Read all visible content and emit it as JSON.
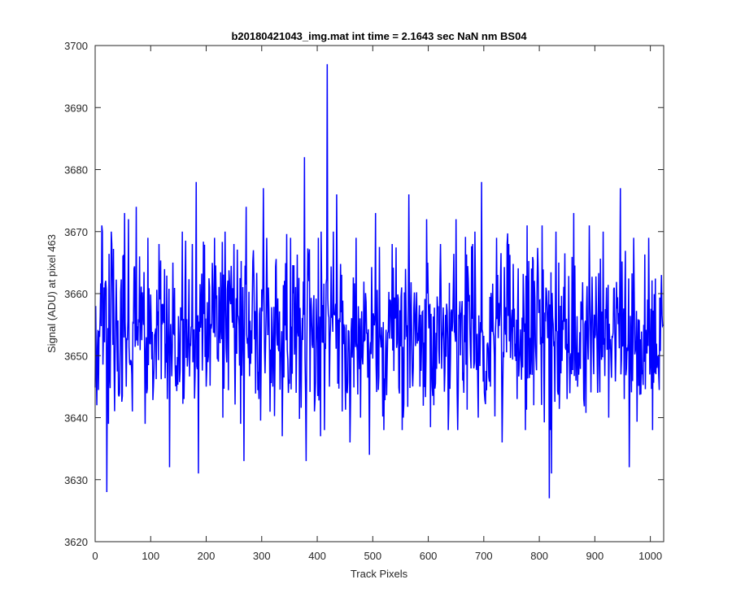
{
  "chart_data": {
    "type": "line",
    "title": "b20180421043_img.mat int time = 2.1643 sec  NaN nm BS04",
    "xlabel": "Track Pixels",
    "ylabel": "Signal (ADU) at pixel 463",
    "xlim": [
      0,
      1024
    ],
    "ylim": [
      3620,
      3700
    ],
    "xticks": [
      0,
      100,
      200,
      300,
      400,
      500,
      600,
      700,
      800,
      900,
      1000
    ],
    "yticks": [
      3620,
      3630,
      3640,
      3650,
      3660,
      3670,
      3680,
      3690,
      3700
    ],
    "grid": false,
    "series": [
      {
        "color": "#0000ff",
        "baseline": 3654,
        "spread": 6.5,
        "count": 1024,
        "points": [
          [
            1,
            3658
          ],
          [
            3,
            3642
          ],
          [
            8,
            3653
          ],
          [
            12,
            3671
          ],
          [
            16,
            3661
          ],
          [
            21,
            3628
          ],
          [
            24,
            3639
          ],
          [
            30,
            3668
          ],
          [
            36,
            3650
          ],
          [
            44,
            3644
          ],
          [
            50,
            3666
          ],
          [
            53,
            3673
          ],
          [
            56,
            3645
          ],
          [
            60,
            3672
          ],
          [
            67,
            3641
          ],
          [
            74,
            3674
          ],
          [
            80,
            3666
          ],
          [
            90,
            3639
          ],
          [
            95,
            3669
          ],
          [
            105,
            3645
          ],
          [
            115,
            3668
          ],
          [
            130,
            3643
          ],
          [
            134,
            3632
          ],
          [
            140,
            3665
          ],
          [
            160,
            3643
          ],
          [
            175,
            3668
          ],
          [
            182,
            3678
          ],
          [
            186,
            3631
          ],
          [
            200,
            3645
          ],
          [
            215,
            3669
          ],
          [
            230,
            3640
          ],
          [
            250,
            3668
          ],
          [
            262,
            3639
          ],
          [
            268,
            3633
          ],
          [
            272,
            3674
          ],
          [
            285,
            3667
          ],
          [
            295,
            3643
          ],
          [
            303,
            3677
          ],
          [
            320,
            3645
          ],
          [
            337,
            3637
          ],
          [
            352,
            3669
          ],
          [
            362,
            3644
          ],
          [
            377,
            3682
          ],
          [
            380,
            3633
          ],
          [
            385,
            3662
          ],
          [
            395,
            3641
          ],
          [
            402,
            3669
          ],
          [
            406,
            3637
          ],
          [
            418,
            3697
          ],
          [
            422,
            3645
          ],
          [
            435,
            3676
          ],
          [
            445,
            3641
          ],
          [
            459,
            3636
          ],
          [
            470,
            3669
          ],
          [
            478,
            3640
          ],
          [
            494,
            3634
          ],
          [
            505,
            3673
          ],
          [
            520,
            3638
          ],
          [
            535,
            3668
          ],
          [
            555,
            3640
          ],
          [
            565,
            3676
          ],
          [
            585,
            3645
          ],
          [
            597,
            3672
          ],
          [
            610,
            3642
          ],
          [
            622,
            3668
          ],
          [
            636,
            3638
          ],
          [
            650,
            3672
          ],
          [
            664,
            3644
          ],
          [
            680,
            3668
          ],
          [
            690,
            3640
          ],
          [
            696,
            3678
          ],
          [
            712,
            3645
          ],
          [
            723,
            3669
          ],
          [
            733,
            3636
          ],
          [
            745,
            3668
          ],
          [
            760,
            3643
          ],
          [
            778,
            3671
          ],
          [
            790,
            3642
          ],
          [
            805,
            3671
          ],
          [
            818,
            3627
          ],
          [
            822,
            3631
          ],
          [
            835,
            3665
          ],
          [
            850,
            3643
          ],
          [
            862,
            3673
          ],
          [
            880,
            3643
          ],
          [
            890,
            3671
          ],
          [
            905,
            3644
          ],
          [
            915,
            3670
          ],
          [
            925,
            3640
          ],
          [
            938,
            3650
          ],
          [
            946,
            3677
          ],
          [
            953,
            3643
          ],
          [
            962,
            3632
          ],
          [
            970,
            3669
          ],
          [
            985,
            3647
          ],
          [
            997,
            3669
          ],
          [
            1010,
            3647
          ],
          [
            1023,
            3655
          ]
        ]
      }
    ]
  }
}
